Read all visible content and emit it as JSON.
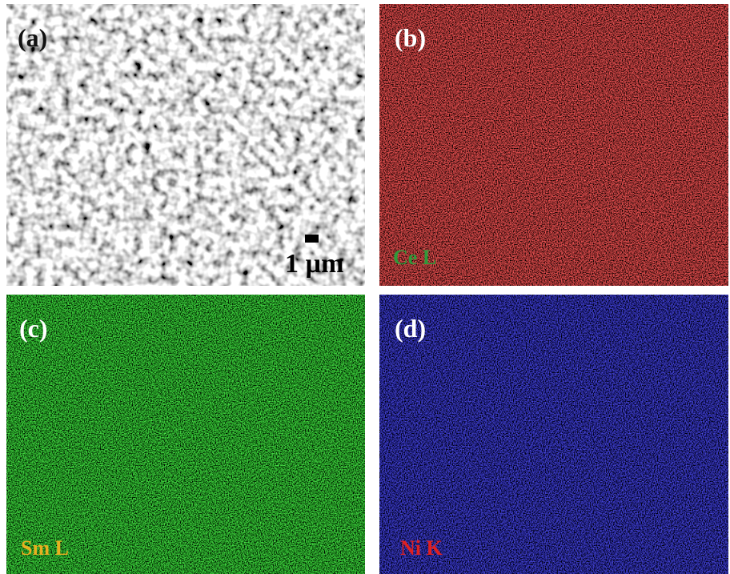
{
  "panels": [
    {
      "label": "(a)",
      "scale_bar": "1 µm"
    },
    {
      "label": "(b)",
      "element": "Ce L"
    },
    {
      "label": "(c)",
      "element": "Sm L"
    },
    {
      "label": "(d)",
      "element": "Ni K"
    }
  ]
}
